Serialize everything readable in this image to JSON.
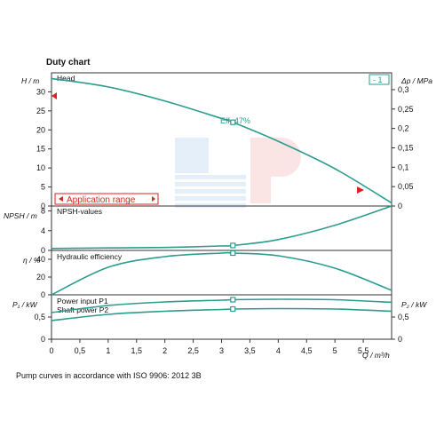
{
  "chart_data": {
    "type": "line",
    "title": "Duty chart",
    "curve_color": "#2a9d8f",
    "xlabel": "Q / m³/h",
    "xlim": [
      0,
      6
    ],
    "xticks": [
      "0",
      "0,5",
      "1",
      "1,5",
      "2",
      "2,5",
      "3",
      "3,5",
      "4",
      "4,5",
      "5",
      "5,5"
    ],
    "operating_point_q": 3.2,
    "badge": "- 1",
    "caption": "Pump curves in accordance with ISO 9906: 2012 3B",
    "panels": [
      {
        "name": "Head",
        "ylabel": "H / m",
        "ylim": [
          0,
          35
        ],
        "yticks": [
          "0",
          "5",
          "10",
          "15",
          "20",
          "25",
          "30"
        ],
        "right_axis_label": "Δp / MPa",
        "right_ticks": [
          "0",
          "0,05",
          "0,1",
          "0,15",
          "0,2",
          "0,25",
          "0,3"
        ],
        "efficiency_label": "Eff. 47%",
        "application_range_label": "Application range",
        "series": [
          {
            "name": "Head",
            "x": [
              0,
              1,
              2,
              3,
              3.2,
              4,
              5,
              6
            ],
            "values": [
              33.5,
              31.3,
              27.6,
              23.0,
              22.0,
              17.0,
              9.8,
              0.8
            ]
          }
        ]
      },
      {
        "name": "NPSH-values",
        "ylabel": "NPSH / m",
        "ylim": [
          0,
          9
        ],
        "yticks": [
          "0",
          "4",
          "8"
        ],
        "series": [
          {
            "name": "NPSH-values",
            "x": [
              0,
              1,
              2,
              3,
              3.2,
              4,
              5,
              6
            ],
            "values": [
              0.4,
              0.5,
              0.6,
              0.9,
              1.0,
              2.2,
              5.1,
              9.0
            ]
          }
        ]
      },
      {
        "name": "Hydraulic efficiency",
        "ylabel": "η / %",
        "ylim": [
          0,
          50
        ],
        "yticks": [
          "0",
          "20",
          "40"
        ],
        "series": [
          {
            "name": "Hydraulic efficiency",
            "x": [
              0,
              1,
              2,
              3,
              3.2,
              4,
              5,
              6
            ],
            "values": [
              0,
              31,
              43,
              47,
              47,
              44,
              30,
              5
            ]
          }
        ]
      },
      {
        "name": "Power input P1",
        "ylabel": "P₁ / kW",
        "ylim": [
          0,
          1
        ],
        "yticks": [
          "0",
          "0,5"
        ],
        "right_axis_label": "P₂ / kW",
        "right_ticks": [
          "0",
          "0,5"
        ],
        "series": [
          {
            "name": "Power input P1",
            "x": [
              0,
              1,
              2,
              3,
              3.2,
              4,
              5,
              6
            ],
            "values": [
              0.6,
              0.76,
              0.84,
              0.88,
              0.89,
              0.9,
              0.89,
              0.83
            ]
          },
          {
            "name": "Shaft power P2",
            "x": [
              0,
              1,
              2,
              3,
              3.2,
              4,
              5,
              6
            ],
            "values": [
              0.42,
              0.56,
              0.63,
              0.67,
              0.68,
              0.69,
              0.68,
              0.63
            ]
          }
        ]
      }
    ]
  }
}
